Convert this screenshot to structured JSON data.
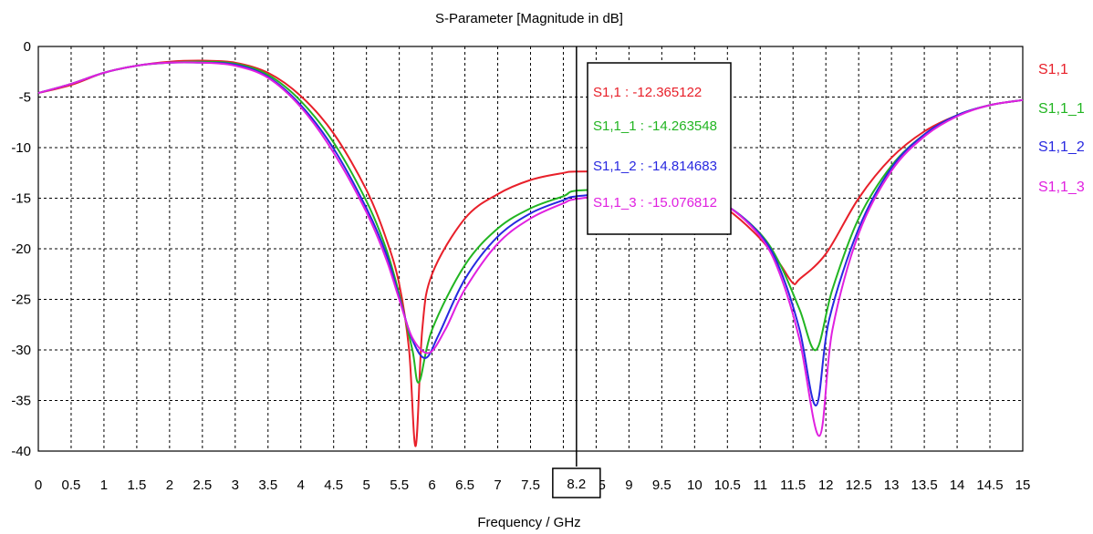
{
  "chart_data": {
    "type": "line",
    "title": "S-Parameter [Magnitude in dB]",
    "xlabel": "Frequency / GHz",
    "ylabel": "",
    "xlim": [
      0,
      15
    ],
    "ylim": [
      -40,
      0
    ],
    "x_ticks": [
      "0",
      "0.5",
      "1",
      "1.5",
      "2",
      "2.5",
      "3",
      "3.5",
      "4",
      "4.5",
      "5",
      "5.5",
      "6",
      "6.5",
      "7",
      "7.5",
      "8",
      "8.5",
      "9",
      "9.5",
      "10",
      "10.5",
      "11",
      "11.5",
      "12",
      "12.5",
      "13",
      "13.5",
      "14",
      "14.5",
      "15"
    ],
    "y_ticks": [
      "0",
      "-5",
      "-10",
      "-15",
      "-20",
      "-25",
      "-30",
      "-35",
      "-40"
    ],
    "grid": true,
    "legend_position": "right",
    "cursor": {
      "x": 8.2,
      "x_label": "8.2"
    },
    "tooltip": [
      {
        "series": "S1,1",
        "text": "S1,1 : -12.365122",
        "color": "#e8202a"
      },
      {
        "series": "S1,1_1",
        "text": "S1,1_1 : -14.263548",
        "color": "#22b522"
      },
      {
        "series": "S1,1_2",
        "text": "S1,1_2 : -14.814683",
        "color": "#2828e0"
      },
      {
        "series": "S1,1_3",
        "text": "S1,1_3 : -15.076812",
        "color": "#e020e0"
      }
    ],
    "series": [
      {
        "name": "S1,1",
        "color": "#e8202a",
        "x": [
          0,
          0.5,
          1,
          1.5,
          2,
          2.5,
          3,
          3.5,
          4,
          4.5,
          5,
          5.3,
          5.5,
          5.65,
          5.75,
          5.85,
          6,
          6.5,
          7,
          7.5,
          8,
          8.2,
          9,
          9.5,
          10,
          10.5,
          11,
          11.3,
          11.5,
          11.6,
          12,
          12.5,
          13,
          13.5,
          14,
          14.5,
          15
        ],
        "values": [
          -4.6,
          -3.8,
          -2.6,
          -1.9,
          -1.5,
          -1.4,
          -1.6,
          -2.6,
          -4.9,
          -8.6,
          -14.2,
          -19.0,
          -23.5,
          -30.0,
          -39.5,
          -28.0,
          -22.5,
          -17.0,
          -14.6,
          -13.2,
          -12.5,
          -12.37,
          -12.4,
          -13.0,
          -14.2,
          -16.1,
          -19.0,
          -21.5,
          -23.4,
          -23.0,
          -20.5,
          -15.0,
          -11.0,
          -8.4,
          -6.8,
          -5.8,
          -5.3
        ]
      },
      {
        "name": "S1,1_1",
        "color": "#22b522",
        "x": [
          0,
          0.5,
          1,
          1.5,
          2,
          2.5,
          3,
          3.5,
          4,
          4.5,
          5,
          5.3,
          5.5,
          5.7,
          5.8,
          6,
          6.5,
          7,
          7.5,
          8,
          8.2,
          9,
          9.5,
          10,
          10.5,
          11,
          11.3,
          11.6,
          11.85,
          12.1,
          12.5,
          13,
          13.5,
          14,
          14.5,
          15
        ],
        "values": [
          -4.6,
          -3.7,
          -2.6,
          -1.9,
          -1.6,
          -1.5,
          -1.7,
          -2.8,
          -5.4,
          -9.5,
          -15.3,
          -20.0,
          -24.5,
          -30.0,
          -33.2,
          -28.0,
          -21.6,
          -18.0,
          -16.0,
          -14.8,
          -14.26,
          -14.1,
          -14.2,
          -14.6,
          -15.8,
          -18.5,
          -21.5,
          -26.0,
          -30.0,
          -24.0,
          -17.0,
          -11.8,
          -8.7,
          -6.8,
          -5.8,
          -5.3
        ]
      },
      {
        "name": "S1,1_2",
        "color": "#2828e0",
        "x": [
          0,
          0.5,
          1,
          1.5,
          2,
          2.5,
          3,
          3.5,
          4,
          4.5,
          5,
          5.3,
          5.5,
          5.7,
          5.9,
          6.1,
          6.5,
          7,
          7.5,
          8,
          8.2,
          9,
          9.5,
          10,
          10.5,
          11,
          11.3,
          11.6,
          11.85,
          12.05,
          12.5,
          13,
          13.5,
          14,
          14.5,
          15
        ],
        "values": [
          -4.6,
          -3.7,
          -2.6,
          -1.9,
          -1.6,
          -1.6,
          -1.8,
          -3.0,
          -5.8,
          -10.1,
          -16.0,
          -20.5,
          -24.8,
          -29.0,
          -30.8,
          -28.5,
          -23.0,
          -18.8,
          -16.5,
          -15.2,
          -14.81,
          -14.4,
          -14.4,
          -14.8,
          -15.8,
          -18.6,
          -22.0,
          -28.0,
          -35.5,
          -27.0,
          -18.0,
          -12.0,
          -8.7,
          -6.8,
          -5.8,
          -5.3
        ]
      },
      {
        "name": "S1,1_3",
        "color": "#e020e0",
        "x": [
          0,
          0.5,
          1,
          1.5,
          2,
          2.5,
          3,
          3.5,
          4,
          4.5,
          5,
          5.3,
          5.5,
          5.7,
          5.95,
          6.2,
          6.5,
          7,
          7.5,
          8,
          8.2,
          9,
          9.5,
          10,
          10.5,
          11,
          11.3,
          11.6,
          11.9,
          12.1,
          12.5,
          13,
          13.5,
          14,
          14.5,
          15
        ],
        "values": [
          -4.6,
          -3.7,
          -2.6,
          -1.9,
          -1.6,
          -1.6,
          -1.9,
          -3.1,
          -6.0,
          -10.5,
          -16.4,
          -21.0,
          -25.0,
          -28.8,
          -30.3,
          -28.0,
          -24.0,
          -19.5,
          -17.0,
          -15.5,
          -15.08,
          -14.5,
          -14.4,
          -14.8,
          -15.8,
          -18.8,
          -22.5,
          -29.0,
          -38.5,
          -28.0,
          -18.5,
          -12.3,
          -8.9,
          -6.9,
          -5.8,
          -5.3
        ]
      }
    ]
  }
}
